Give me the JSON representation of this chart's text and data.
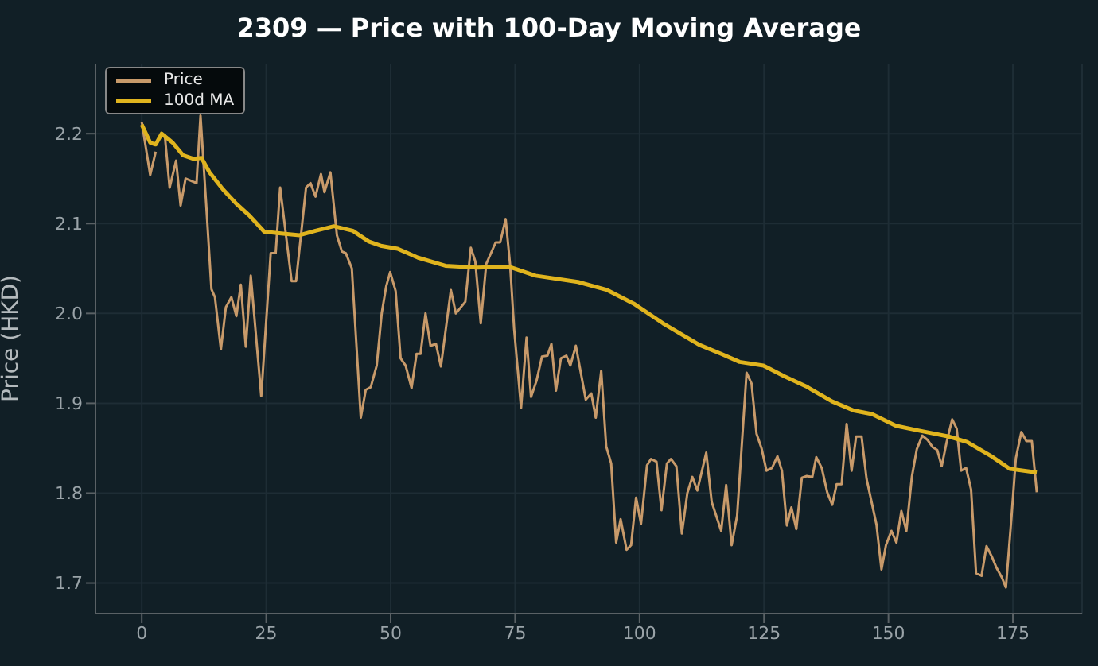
{
  "chart_data": {
    "type": "line",
    "title": "2309 — Price with 100-Day Moving Average",
    "ylabel": "Price (HKD)",
    "xlim": [
      -9.3,
      188.9
    ],
    "xticks": [
      0,
      25,
      50,
      75,
      100,
      125,
      150,
      175
    ],
    "ylim": [
      1.666,
      2.278
    ],
    "yticks": [
      1.7,
      1.8,
      1.9,
      {
        "value": 2,
        "label": "2.0"
      },
      2.1,
      2.2
    ],
    "grid": true,
    "legend": "top left",
    "line_style": "solid",
    "marker": "none",
    "series": [
      {
        "name": "Price",
        "color": "#c89a6a",
        "x": [
          0,
          1.7,
          2.8,
          4,
          4.6,
          5.6,
          6.9,
          7.8,
          8.8,
          11,
          11.8,
          12.9,
          14,
          14.7,
          15.9,
          16.9,
          18,
          19,
          19.9,
          20.9,
          21.9,
          24,
          25.9,
          26.9,
          27.8,
          30.1,
          31,
          33,
          33.9,
          34.9,
          36,
          36.7,
          37.9,
          39.2,
          40.2,
          41,
          42.2,
          44,
          45,
          46,
          47.2,
          48.2,
          49.1,
          49.9,
          51,
          52,
          53,
          54.2,
          55.2,
          56,
          57,
          58,
          59.1,
          60.1,
          62.1,
          63.1,
          65,
          66.1,
          67,
          68.1,
          69.2,
          71.1,
          72,
          73.1,
          74,
          74.8,
          76.2,
          77.3,
          78.2,
          79.3,
          80.4,
          81.5,
          82.3,
          83.2,
          84.2,
          85.3,
          86.1,
          87.2,
          89.2,
          90.3,
          91.2,
          92.3,
          93.3,
          94.3,
          95.3,
          96.2,
          97.4,
          98.3,
          99.3,
          100.3,
          101.5,
          102.3,
          103.4,
          104.4,
          105.5,
          106.3,
          107.4,
          108.5,
          109.6,
          110.6,
          111.6,
          113.4,
          114.5,
          116.4,
          117.4,
          118.5,
          119.6,
          121.5,
          122.5,
          123.5,
          124.5,
          125.5,
          126.6,
          127.7,
          128.6,
          129.6,
          130.5,
          131.5,
          132.6,
          133.6,
          134.7,
          135.5,
          136.6,
          137.7,
          138.7,
          139.6,
          140.6,
          141.6,
          142.6,
          143.5,
          144.6,
          145.6,
          147.6,
          148.6,
          149.5,
          150.6,
          151.6,
          152.6,
          153.6,
          154.7,
          155.7,
          156.8,
          157.9,
          158.9,
          159.8,
          160.7,
          161.7,
          162.8,
          163.7,
          164.6,
          165.6,
          166.6,
          167.6,
          168.7,
          169.7,
          170.8,
          171.7,
          172.8,
          173.6,
          174.7,
          175.6,
          176.7,
          177.7,
          178.8,
          179.8
        ],
        "values": [
          2.213,
          2.154,
          2.18,
          null,
          2.2,
          2.14,
          2.17,
          2.12,
          2.15,
          2.145,
          2.22,
          2.125,
          2.027,
          2.018,
          1.96,
          2.007,
          2.018,
          1.997,
          2.032,
          1.963,
          2.042,
          1.908,
          2.067,
          2.067,
          2.14,
          2.036,
          2.036,
          2.14,
          2.145,
          2.13,
          2.155,
          2.135,
          2.157,
          2.087,
          2.069,
          2.067,
          2.05,
          1.884,
          1.915,
          1.918,
          1.942,
          2.0,
          2.03,
          2.046,
          2.025,
          1.95,
          1.942,
          1.917,
          1.955,
          1.955,
          2.0,
          1.964,
          1.966,
          1.941,
          2.026,
          2.0,
          2.013,
          2.073,
          2.058,
          1.989,
          2.055,
          2.079,
          2.079,
          2.105,
          2.054,
          1.983,
          1.895,
          1.973,
          1.907,
          1.925,
          1.952,
          1.953,
          1.966,
          1.914,
          1.95,
          1.953,
          1.942,
          1.964,
          1.904,
          1.911,
          1.884,
          1.936,
          1.852,
          1.833,
          1.745,
          1.771,
          1.737,
          1.742,
          1.795,
          1.766,
          1.831,
          1.838,
          1.835,
          1.781,
          1.833,
          1.838,
          1.83,
          1.755,
          1.8,
          1.818,
          1.803,
          1.845,
          1.79,
          1.758,
          1.809,
          1.742,
          1.775,
          1.934,
          1.922,
          1.866,
          1.85,
          1.825,
          1.828,
          1.841,
          1.825,
          1.764,
          1.784,
          1.76,
          1.817,
          1.819,
          1.818,
          1.84,
          1.828,
          1.801,
          1.787,
          1.81,
          1.81,
          1.877,
          1.825,
          1.863,
          1.863,
          1.816,
          1.765,
          1.715,
          1.742,
          1.758,
          1.745,
          1.78,
          1.758,
          1.818,
          1.849,
          1.864,
          1.859,
          1.851,
          1.848,
          1.83,
          1.857,
          1.882,
          1.872,
          1.825,
          1.828,
          1.804,
          1.711,
          1.708,
          1.741,
          1.729,
          1.717,
          1.706,
          1.695,
          1.772,
          1.839,
          1.868,
          1.858,
          1.858,
          1.801
        ]
      },
      {
        "name": "100d MA",
        "color": "#e0b41e",
        "x": [
          0,
          1.7,
          2.8,
          4,
          6.2,
          8.3,
          10.4,
          12,
          13.6,
          16.3,
          19,
          21.6,
          24.6,
          28,
          31.7,
          34.9,
          38.6,
          42.4,
          45.6,
          48.2,
          51.4,
          55.5,
          61,
          67.4,
          73.8,
          79.1,
          87.6,
          93.5,
          98.8,
          104.7,
          112,
          116.4,
          120.1,
          124.9,
          129.1,
          133.4,
          138.7,
          143,
          146.7,
          151.5,
          155.8,
          162.1,
          165.8,
          170.7,
          174.4,
          179.8
        ],
        "values": [
          2.21,
          2.19,
          2.188,
          2.2,
          2.19,
          2.176,
          2.172,
          2.173,
          2.157,
          2.138,
          2.122,
          2.109,
          2.091,
          2.089,
          2.087,
          2.092,
          2.097,
          2.092,
          2.08,
          2.075,
          2.072,
          2.062,
          2.053,
          2.051,
          2.052,
          2.042,
          2.035,
          2.026,
          2.011,
          1.989,
          1.965,
          1.955,
          1.946,
          1.942,
          1.93,
          1.919,
          1.902,
          1.892,
          1.888,
          1.875,
          1.87,
          1.863,
          1.857,
          1.841,
          1.827,
          1.823
        ]
      }
    ]
  }
}
